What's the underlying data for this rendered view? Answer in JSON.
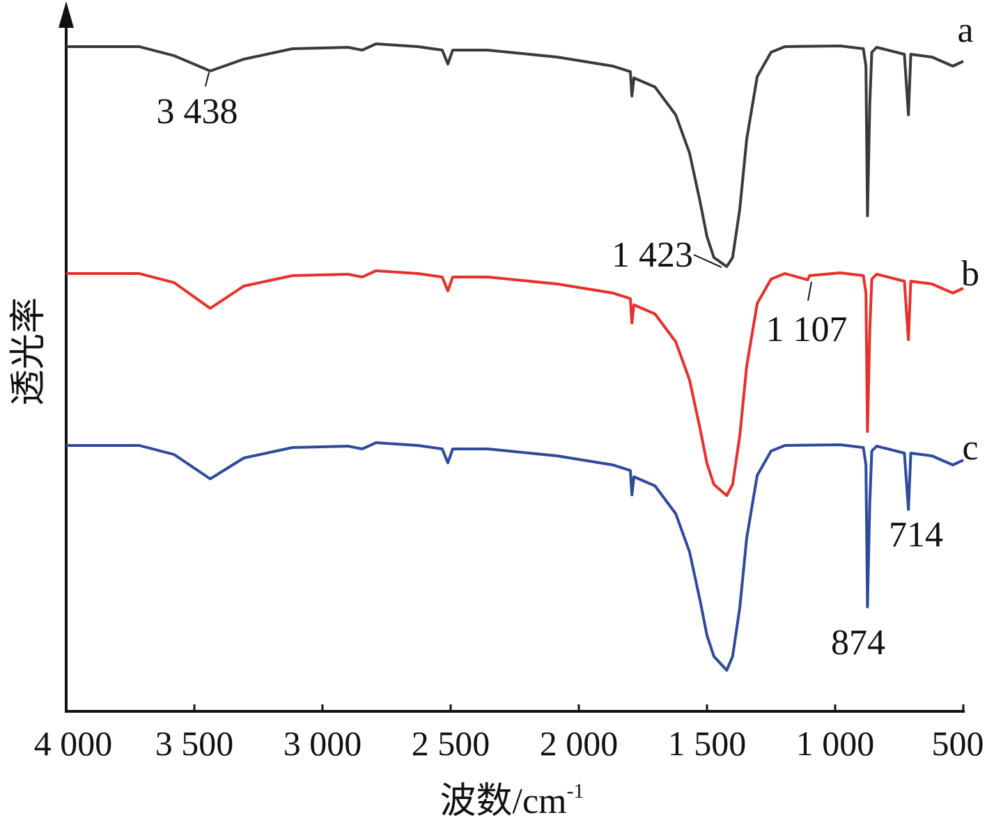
{
  "chart_data": {
    "type": "line",
    "title": "",
    "xlabel": "波数/cm",
    "xlabel_sup": "-1",
    "ylabel": "透光率",
    "xlim": [
      4000,
      500
    ],
    "ylim": [
      0,
      100
    ],
    "x_reversed": true,
    "grid": false,
    "xticks": [
      4000,
      3500,
      3000,
      2500,
      2000,
      1500,
      1000,
      500
    ],
    "xtick_labels": [
      "4 000",
      "3 500",
      "3 000",
      "2 500",
      "2 000",
      "1 500",
      "1 000",
      "500"
    ],
    "series": [
      {
        "name": "a",
        "color": "#3a3a3a",
        "points": [
          [
            4000,
            95.5
          ],
          [
            3715,
            95.5
          ],
          [
            3579,
            94.2
          ],
          [
            3438,
            92.0
          ],
          [
            3307,
            93.7
          ],
          [
            3117,
            95.2
          ],
          [
            2900,
            95.4
          ],
          [
            2845,
            95.0
          ],
          [
            2791,
            95.9
          ],
          [
            2628,
            95.5
          ],
          [
            2533,
            95.0
          ],
          [
            2511,
            93.0
          ],
          [
            2492,
            95.0
          ],
          [
            2356,
            95.0
          ],
          [
            2084,
            94.0
          ],
          [
            1867,
            92.7
          ],
          [
            1799,
            91.9
          ],
          [
            1793,
            88.4
          ],
          [
            1785,
            91.0
          ],
          [
            1703,
            89.7
          ],
          [
            1622,
            85.7
          ],
          [
            1568,
            80.2
          ],
          [
            1527,
            73.2
          ],
          [
            1500,
            68.2
          ],
          [
            1473,
            65.2
          ],
          [
            1423,
            63.9
          ],
          [
            1400,
            65.2
          ],
          [
            1372,
            72.2
          ],
          [
            1345,
            82.2
          ],
          [
            1304,
            91.2
          ],
          [
            1250,
            94.7
          ],
          [
            1196,
            95.5
          ],
          [
            980,
            95.6
          ],
          [
            890,
            95.2
          ],
          [
            880,
            92.7
          ],
          [
            874,
            71.2
          ],
          [
            865,
            87.2
          ],
          [
            857,
            94.7
          ],
          [
            838,
            95.4
          ],
          [
            730,
            94.4
          ],
          [
            714,
            85.7
          ],
          [
            705,
            94.4
          ],
          [
            622,
            94.0
          ],
          [
            541,
            92.7
          ],
          [
            500,
            93.4
          ]
        ]
      },
      {
        "name": "b",
        "color": "#e8302a",
        "points": [
          [
            4000,
            62.9
          ],
          [
            3715,
            62.9
          ],
          [
            3579,
            61.6
          ],
          [
            3438,
            57.9
          ],
          [
            3307,
            61.1
          ],
          [
            3117,
            62.6
          ],
          [
            2900,
            62.8
          ],
          [
            2845,
            62.4
          ],
          [
            2791,
            63.3
          ],
          [
            2628,
            62.9
          ],
          [
            2533,
            62.4
          ],
          [
            2511,
            60.4
          ],
          [
            2492,
            62.4
          ],
          [
            2356,
            62.4
          ],
          [
            2084,
            61.4
          ],
          [
            1867,
            60.1
          ],
          [
            1799,
            59.3
          ],
          [
            1793,
            55.8
          ],
          [
            1785,
            58.4
          ],
          [
            1703,
            57.1
          ],
          [
            1622,
            53.1
          ],
          [
            1568,
            47.6
          ],
          [
            1527,
            40.6
          ],
          [
            1500,
            35.6
          ],
          [
            1473,
            32.6
          ],
          [
            1423,
            31.0
          ],
          [
            1400,
            32.6
          ],
          [
            1372,
            39.6
          ],
          [
            1345,
            49.6
          ],
          [
            1304,
            58.6
          ],
          [
            1250,
            62.1
          ],
          [
            1196,
            62.9
          ],
          [
            1107,
            62.0
          ],
          [
            1100,
            62.6
          ],
          [
            980,
            63.0
          ],
          [
            890,
            62.6
          ],
          [
            880,
            60.1
          ],
          [
            874,
            40.2
          ],
          [
            865,
            54.6
          ],
          [
            857,
            62.1
          ],
          [
            838,
            62.8
          ],
          [
            730,
            61.8
          ],
          [
            714,
            53.4
          ],
          [
            705,
            61.8
          ],
          [
            622,
            61.4
          ],
          [
            541,
            60.1
          ],
          [
            500,
            60.8
          ]
        ]
      },
      {
        "name": "c",
        "color": "#2e4a9a",
        "points": [
          [
            4000,
            38.2
          ],
          [
            3715,
            38.2
          ],
          [
            3579,
            36.9
          ],
          [
            3438,
            33.4
          ],
          [
            3307,
            36.4
          ],
          [
            3117,
            37.9
          ],
          [
            2900,
            38.1
          ],
          [
            2845,
            37.7
          ],
          [
            2791,
            38.6
          ],
          [
            2628,
            38.2
          ],
          [
            2533,
            37.7
          ],
          [
            2511,
            35.7
          ],
          [
            2492,
            37.7
          ],
          [
            2356,
            37.7
          ],
          [
            2084,
            36.7
          ],
          [
            1867,
            35.4
          ],
          [
            1799,
            34.6
          ],
          [
            1793,
            31.1
          ],
          [
            1785,
            33.7
          ],
          [
            1703,
            32.4
          ],
          [
            1622,
            28.4
          ],
          [
            1568,
            22.9
          ],
          [
            1527,
            15.9
          ],
          [
            1500,
            10.9
          ],
          [
            1473,
            7.9
          ],
          [
            1423,
            5.9
          ],
          [
            1400,
            7.9
          ],
          [
            1372,
            14.9
          ],
          [
            1345,
            24.9
          ],
          [
            1304,
            33.9
          ],
          [
            1250,
            37.4
          ],
          [
            1196,
            38.2
          ],
          [
            980,
            38.3
          ],
          [
            890,
            37.9
          ],
          [
            880,
            35.4
          ],
          [
            874,
            15.0
          ],
          [
            865,
            29.9
          ],
          [
            857,
            37.4
          ],
          [
            838,
            38.1
          ],
          [
            730,
            37.1
          ],
          [
            714,
            29.0
          ],
          [
            705,
            37.1
          ],
          [
            622,
            36.7
          ],
          [
            541,
            35.4
          ],
          [
            500,
            36.1
          ]
        ]
      }
    ],
    "annotations": [
      {
        "text": "3 438",
        "series": "a",
        "x": 3438
      },
      {
        "text": "1 423",
        "series": "a",
        "x": 1423
      },
      {
        "text": "1 107",
        "series": "b",
        "x": 1107
      },
      {
        "text": "714",
        "series": "c",
        "x": 714
      },
      {
        "text": "874",
        "series": "c",
        "x": 874
      }
    ]
  }
}
